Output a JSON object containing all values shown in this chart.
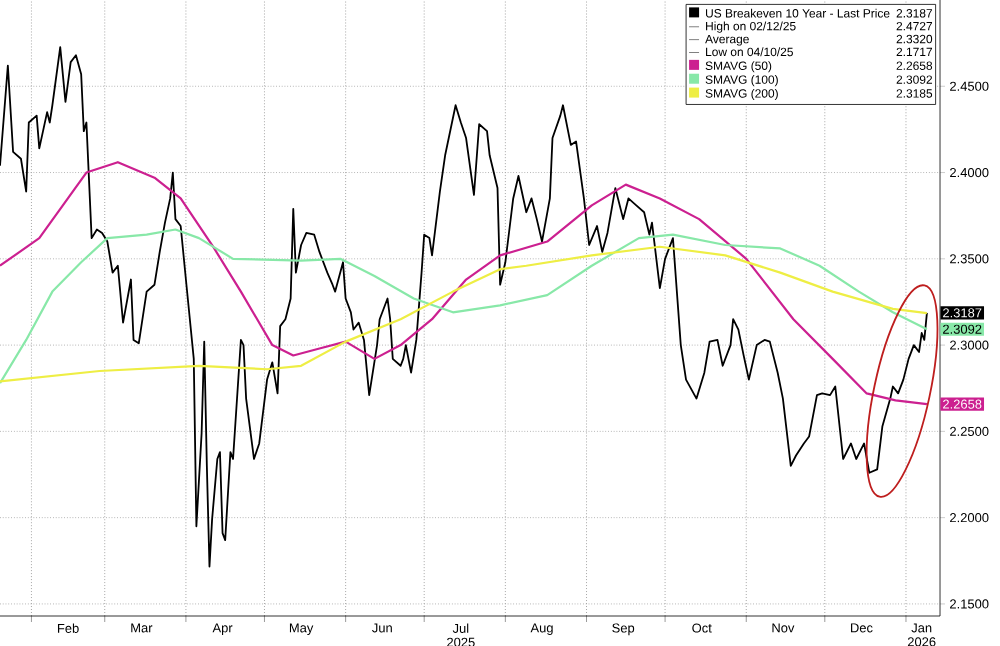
{
  "chart_data": {
    "type": "line",
    "xlim": [
      "2025-01-20",
      "2026-01-14"
    ],
    "ylim": [
      2.143,
      2.5
    ],
    "xticks": [
      {
        "value": "2025-02-01",
        "label": null
      },
      {
        "value": "2025-03-01",
        "label": null
      },
      {
        "value": "2025-04-01",
        "label": null
      },
      {
        "value": "2025-05-01",
        "label": null
      },
      {
        "value": "2025-06-01",
        "label": null
      },
      {
        "value": "2025-07-01",
        "label": null
      },
      {
        "value": "2025-08-01",
        "label": null
      },
      {
        "value": "2025-09-01",
        "label": null
      },
      {
        "value": "2025-10-01",
        "label": null
      },
      {
        "value": "2025-11-01",
        "label": null
      },
      {
        "value": "2025-12-01",
        "label": null
      },
      {
        "value": "2026-01-01",
        "label": null
      },
      {
        "value": "2025-02-15",
        "label": "Feb"
      },
      {
        "value": "2025-03-15",
        "label": "Mar"
      },
      {
        "value": "2025-04-15",
        "label": "Apr"
      },
      {
        "value": "2025-05-15",
        "label": "May"
      },
      {
        "value": "2025-06-15",
        "label": "Jun"
      },
      {
        "value": "2025-07-15",
        "label": "Jul 2025"
      },
      {
        "value": "2025-08-15",
        "label": "Aug"
      },
      {
        "value": "2025-09-15",
        "label": "Sep"
      },
      {
        "value": "2025-10-15",
        "label": "Oct"
      },
      {
        "value": "2025-11-15",
        "label": "Nov"
      },
      {
        "value": "2025-12-15",
        "label": "Dec"
      },
      {
        "value": "2026-01-07",
        "label": "Jan 2026"
      }
    ],
    "yticks": [
      {
        "value": 2.15,
        "label": "2.1500"
      },
      {
        "value": 2.2,
        "label": "2.2000"
      },
      {
        "value": 2.25,
        "label": "2.2500"
      },
      {
        "value": 2.3,
        "label": "2.3000"
      },
      {
        "value": 2.35,
        "label": "2.3500"
      },
      {
        "value": 2.4,
        "label": "2.4000"
      },
      {
        "value": 2.45,
        "label": "2.4500"
      }
    ],
    "grid": true,
    "legend": "top right",
    "marker": "none",
    "line_style": "solid",
    "series": [
      {
        "name": "US Breakeven 10 Year - Last Price",
        "color": "#000000",
        "x": [
          "2025-01-20",
          "2025-01-23",
          "2025-01-25",
          "2025-01-28",
          "2025-01-30",
          "2025-01-31",
          "2025-02-03",
          "2025-02-04",
          "2025-02-07",
          "2025-02-08",
          "2025-02-09",
          "2025-02-12",
          "2025-02-14",
          "2025-02-16",
          "2025-02-18",
          "2025-02-20",
          "2025-02-21",
          "2025-02-22",
          "2025-02-24",
          "2025-02-26",
          "2025-02-28",
          "2025-03-02",
          "2025-03-04",
          "2025-03-06",
          "2025-03-08",
          "2025-03-11",
          "2025-03-12",
          "2025-03-14",
          "2025-03-17",
          "2025-03-20",
          "2025-03-22",
          "2025-03-24",
          "2025-03-26",
          "2025-03-27",
          "2025-03-28",
          "2025-03-30",
          "2025-04-01",
          "2025-04-04",
          "2025-04-05",
          "2025-04-07",
          "2025-04-08",
          "2025-04-09",
          "2025-04-10",
          "2025-04-11",
          "2025-04-13",
          "2025-04-14",
          "2025-04-15",
          "2025-04-16",
          "2025-04-18",
          "2025-04-19",
          "2025-04-22",
          "2025-04-23",
          "2025-04-24",
          "2025-04-27",
          "2025-04-29",
          "2025-05-02",
          "2025-05-04",
          "2025-05-06",
          "2025-05-07",
          "2025-05-09",
          "2025-05-11",
          "2025-05-12",
          "2025-05-13",
          "2025-05-15",
          "2025-05-17",
          "2025-05-20",
          "2025-05-22",
          "2025-05-25",
          "2025-05-27",
          "2025-05-28",
          "2025-05-31",
          "2025-06-01",
          "2025-06-03",
          "2025-06-04",
          "2025-06-06",
          "2025-06-08",
          "2025-06-10",
          "2025-06-13",
          "2025-06-14",
          "2025-06-17",
          "2025-06-18",
          "2025-06-19",
          "2025-06-22",
          "2025-06-23",
          "2025-06-24",
          "2025-06-26",
          "2025-06-28",
          "2025-06-30",
          "2025-07-01",
          "2025-07-03",
          "2025-07-04",
          "2025-07-07",
          "2025-07-09",
          "2025-07-13",
          "2025-07-15",
          "2025-07-17",
          "2025-07-20",
          "2025-07-22",
          "2025-07-25",
          "2025-07-26",
          "2025-07-29",
          "2025-07-30",
          "2025-08-01",
          "2025-08-04",
          "2025-08-06",
          "2025-08-09",
          "2025-08-11",
          "2025-08-13",
          "2025-08-15",
          "2025-08-18",
          "2025-08-19",
          "2025-08-22",
          "2025-08-23",
          "2025-08-26",
          "2025-08-28",
          "2025-08-31",
          "2025-09-02",
          "2025-09-05",
          "2025-09-07",
          "2025-09-09",
          "2025-09-12",
          "2025-09-15",
          "2025-09-17",
          "2025-09-20",
          "2025-09-23",
          "2025-09-25",
          "2025-09-26",
          "2025-09-29",
          "2025-10-01",
          "2025-10-04",
          "2025-10-07",
          "2025-10-09",
          "2025-10-13",
          "2025-10-16",
          "2025-10-18",
          "2025-10-21",
          "2025-10-23",
          "2025-10-26",
          "2025-10-27",
          "2025-10-29",
          "2025-10-31",
          "2025-11-02",
          "2025-11-05",
          "2025-11-08",
          "2025-11-10",
          "2025-11-13",
          "2025-11-15",
          "2025-11-18",
          "2025-11-20",
          "2025-11-23",
          "2025-11-25",
          "2025-11-28",
          "2025-11-30",
          "2025-12-03",
          "2025-12-05",
          "2025-12-08",
          "2025-12-11",
          "2025-12-13",
          "2025-12-16",
          "2025-12-18",
          "2025-12-21",
          "2025-12-23",
          "2025-12-26",
          "2025-12-27",
          "2025-12-29",
          "2025-12-31",
          "2026-01-02",
          "2026-01-04",
          "2026-01-06",
          "2026-01-07",
          "2026-01-08",
          "2026-01-09"
        ],
        "values": [
          2.404,
          2.462,
          2.412,
          2.408,
          2.389,
          2.429,
          2.433,
          2.414,
          2.435,
          2.429,
          2.439,
          2.4727,
          2.441,
          2.464,
          2.468,
          2.457,
          2.424,
          2.429,
          2.362,
          2.367,
          2.365,
          2.36,
          2.342,
          2.346,
          2.313,
          2.338,
          2.303,
          2.301,
          2.331,
          2.335,
          2.354,
          2.371,
          2.385,
          2.4,
          2.373,
          2.369,
          2.338,
          2.292,
          2.195,
          2.249,
          2.302,
          2.23,
          2.1717,
          2.199,
          2.234,
          2.238,
          2.191,
          2.187,
          2.238,
          2.234,
          2.303,
          2.3,
          2.269,
          2.234,
          2.243,
          2.28,
          2.29,
          2.272,
          2.311,
          2.315,
          2.327,
          2.379,
          2.342,
          2.358,
          2.365,
          2.364,
          2.354,
          2.342,
          2.335,
          2.331,
          2.348,
          2.327,
          2.319,
          2.309,
          2.313,
          2.303,
          2.271,
          2.3,
          2.315,
          2.327,
          2.315,
          2.292,
          2.288,
          2.292,
          2.3,
          2.284,
          2.303,
          2.342,
          2.364,
          2.362,
          2.352,
          2.389,
          2.41,
          2.439,
          2.429,
          2.42,
          2.387,
          2.428,
          2.424,
          2.41,
          2.391,
          2.335,
          2.348,
          2.385,
          2.398,
          2.377,
          2.385,
          2.373,
          2.36,
          2.385,
          2.42,
          2.433,
          2.439,
          2.416,
          2.418,
          2.385,
          2.358,
          2.369,
          2.354,
          2.365,
          2.391,
          2.373,
          2.385,
          2.381,
          2.377,
          2.364,
          2.371,
          2.333,
          2.35,
          2.362,
          2.3,
          2.28,
          2.269,
          2.284,
          2.302,
          2.303,
          2.288,
          2.3,
          2.315,
          2.309,
          2.294,
          2.28,
          2.3,
          2.303,
          2.302,
          2.284,
          2.269,
          2.23,
          2.236,
          2.243,
          2.247,
          2.271,
          2.272,
          2.271,
          2.276,
          2.234,
          2.243,
          2.234,
          2.243,
          2.226,
          2.228,
          2.253,
          2.269,
          2.276,
          2.272,
          2.28,
          2.292,
          2.3,
          2.296,
          2.307,
          2.303,
          2.3187
        ]
      },
      {
        "name": "SMAVG (50)",
        "color": "#cc2090",
        "x": [
          "2025-01-20",
          "2025-02-04",
          "2025-02-22",
          "2025-03-06",
          "2025-03-20",
          "2025-03-30",
          "2025-04-11",
          "2025-04-22",
          "2025-05-04",
          "2025-05-12",
          "2025-05-22",
          "2025-06-01",
          "2025-06-12",
          "2025-06-22",
          "2025-07-04",
          "2025-07-17",
          "2025-07-30",
          "2025-08-17",
          "2025-09-03",
          "2025-09-16",
          "2025-09-29",
          "2025-10-14",
          "2025-11-01",
          "2025-11-19",
          "2025-12-04",
          "2025-12-17",
          "2025-12-28",
          "2026-01-09"
        ],
        "values": [
          2.346,
          2.362,
          2.4,
          2.406,
          2.397,
          2.385,
          2.358,
          2.331,
          2.3,
          2.294,
          2.298,
          2.302,
          2.292,
          2.3,
          2.315,
          2.338,
          2.352,
          2.36,
          2.381,
          2.393,
          2.385,
          2.373,
          2.35,
          2.315,
          2.292,
          2.272,
          2.268,
          2.2658
        ]
      },
      {
        "name": "SMAVG (100)",
        "color": "#88e8a8",
        "x": [
          "2025-01-20",
          "2025-01-30",
          "2025-02-09",
          "2025-02-20",
          "2025-03-02",
          "2025-03-17",
          "2025-03-28",
          "2025-04-06",
          "2025-04-19",
          "2025-05-15",
          "2025-05-30",
          "2025-06-12",
          "2025-06-27",
          "2025-07-12",
          "2025-07-30",
          "2025-08-17",
          "2025-09-03",
          "2025-09-21",
          "2025-10-04",
          "2025-10-24",
          "2025-11-14",
          "2025-11-29",
          "2025-12-14",
          "2025-12-27",
          "2026-01-09"
        ],
        "values": [
          2.278,
          2.303,
          2.331,
          2.348,
          2.362,
          2.364,
          2.367,
          2.362,
          2.35,
          2.349,
          2.35,
          2.34,
          2.327,
          2.319,
          2.323,
          2.329,
          2.346,
          2.362,
          2.364,
          2.358,
          2.356,
          2.346,
          2.331,
          2.319,
          2.3092
        ]
      },
      {
        "name": "SMAVG (200)",
        "color": "#eeee44",
        "x": [
          "2025-01-20",
          "2025-02-27",
          "2025-04-06",
          "2025-05-02",
          "2025-05-15",
          "2025-06-01",
          "2025-06-22",
          "2025-07-12",
          "2025-07-30",
          "2025-08-09",
          "2025-09-03",
          "2025-09-29",
          "2025-10-24",
          "2025-11-14",
          "2025-12-04",
          "2025-12-27",
          "2026-01-09"
        ],
        "values": [
          2.279,
          2.285,
          2.288,
          2.286,
          2.288,
          2.302,
          2.315,
          2.331,
          2.344,
          2.346,
          2.352,
          2.357,
          2.352,
          2.342,
          2.331,
          2.321,
          2.3185
        ]
      }
    ],
    "annotations": [
      "High on 02/12/25",
      "2.4727",
      "Average",
      "2.3320",
      "Low on 04/10/25",
      "2.1717",
      "2.3187",
      "2.2658",
      "2.3092",
      "2.3185",
      {
        "text": "2.3187",
        "x": "2026-01-09",
        "y": 2.3187
      },
      {
        "text": "2.2658",
        "x": "2026-01-09",
        "y": 2.2658
      },
      {
        "text": "2.3092",
        "x": "2026-01-09",
        "y": 2.3092
      }
    ]
  }
}
